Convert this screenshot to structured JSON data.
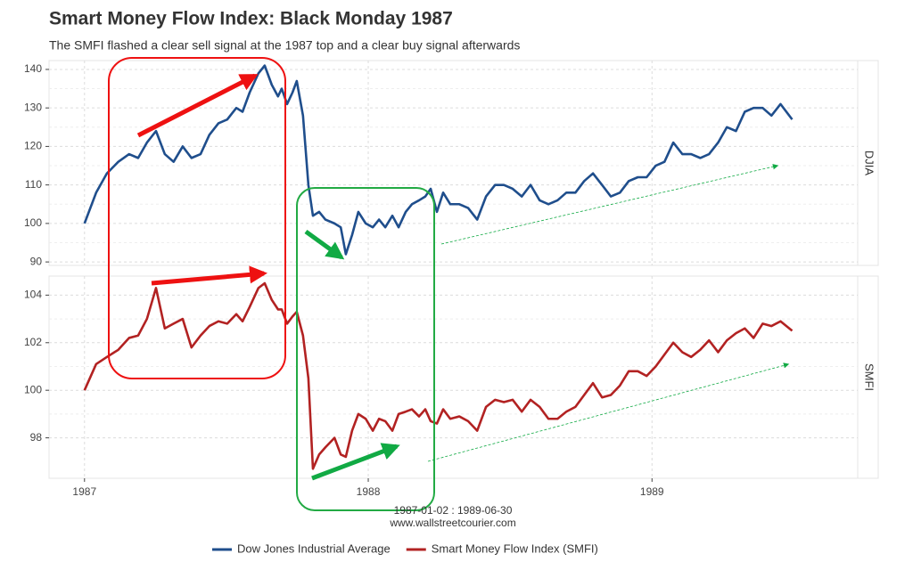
{
  "title": "Smart Money Flow Index: Black Monday 1987",
  "subtitle": "The SMFI flashed a clear sell signal at the 1987 top and a clear buy signal afterwards",
  "date_range": "1987-01-02 : 1989-06-30",
  "source": "www.wallstreetcourier.com",
  "chart_data": [
    {
      "type": "line",
      "panel_label": "DJIA",
      "x": [
        1987.0,
        1987.041,
        1987.079,
        1987.119,
        1987.157,
        1987.189,
        1987.22,
        1987.252,
        1987.283,
        1987.314,
        1987.346,
        1987.377,
        1987.409,
        1987.44,
        1987.472,
        1987.503,
        1987.535,
        1987.557,
        1987.582,
        1987.613,
        1987.635,
        1987.66,
        1987.682,
        1987.695,
        1987.714,
        1987.733,
        1987.748,
        1987.77,
        1987.789,
        1987.805,
        1987.827,
        1987.849,
        1987.881,
        1987.903,
        1987.921,
        1987.943,
        1987.965,
        1987.991,
        1988.016,
        1988.038,
        1988.06,
        1988.085,
        1988.107,
        1988.132,
        1988.154,
        1988.179,
        1988.201,
        1988.22,
        1988.242,
        1988.264,
        1988.289,
        1988.321,
        1988.352,
        1988.384,
        1988.415,
        1988.447,
        1988.478,
        1988.509,
        1988.541,
        1988.572,
        1988.604,
        1988.635,
        1988.667,
        1988.698,
        1988.73,
        1988.761,
        1988.792,
        1988.824,
        1988.855,
        1988.887,
        1988.918,
        1988.95,
        1988.981,
        1989.013,
        1989.044,
        1989.075,
        1989.107,
        1989.138,
        1989.17,
        1989.201,
        1989.233,
        1989.264,
        1989.296,
        1989.327,
        1989.358,
        1989.39,
        1989.421,
        1989.453,
        1989.494
      ],
      "series": [
        {
          "name": "Dow Jones Industrial Average",
          "color": "#1f4e8c",
          "values": [
            100,
            108,
            113,
            116,
            118,
            117,
            121,
            124,
            118,
            116,
            120,
            117,
            118,
            123,
            126,
            127,
            130,
            129,
            134,
            139,
            141,
            136,
            133,
            135,
            131,
            134,
            137,
            128,
            110,
            102,
            103,
            101,
            100,
            99,
            92,
            97,
            103,
            100,
            99,
            101,
            99,
            102,
            99,
            103,
            105,
            106,
            107,
            109,
            103,
            108,
            105,
            105,
            104,
            101,
            107,
            110,
            110,
            109,
            107,
            110,
            106,
            105,
            106,
            108,
            108,
            111,
            113,
            110,
            107,
            108,
            111,
            112,
            112,
            115,
            116,
            121,
            118,
            118,
            117,
            118,
            121,
            125,
            124,
            129,
            130,
            130,
            128,
            131,
            127
          ]
        }
      ],
      "xlim": [
        1986.875,
        1989.725
      ],
      "ylim": [
        89.1,
        142.3
      ],
      "yticks": [
        90,
        100,
        110,
        120,
        130,
        140
      ],
      "grid": true
    },
    {
      "type": "line",
      "panel_label": "SMFI",
      "x": [
        1987.0,
        1987.041,
        1987.079,
        1987.119,
        1987.157,
        1987.189,
        1987.22,
        1987.252,
        1987.283,
        1987.314,
        1987.346,
        1987.377,
        1987.409,
        1987.44,
        1987.472,
        1987.503,
        1987.535,
        1987.557,
        1987.582,
        1987.613,
        1987.635,
        1987.66,
        1987.682,
        1987.695,
        1987.714,
        1987.733,
        1987.748,
        1987.77,
        1987.789,
        1987.805,
        1987.827,
        1987.849,
        1987.881,
        1987.903,
        1987.921,
        1987.943,
        1987.965,
        1987.991,
        1988.016,
        1988.038,
        1988.06,
        1988.085,
        1988.107,
        1988.132,
        1988.154,
        1988.179,
        1988.201,
        1988.22,
        1988.242,
        1988.264,
        1988.289,
        1988.321,
        1988.352,
        1988.384,
        1988.415,
        1988.447,
        1988.478,
        1988.509,
        1988.541,
        1988.572,
        1988.604,
        1988.635,
        1988.667,
        1988.698,
        1988.73,
        1988.761,
        1988.792,
        1988.824,
        1988.855,
        1988.887,
        1988.918,
        1988.95,
        1988.981,
        1989.013,
        1989.044,
        1989.075,
        1989.107,
        1989.138,
        1989.17,
        1989.201,
        1989.233,
        1989.264,
        1989.296,
        1989.327,
        1989.358,
        1989.39,
        1989.421,
        1989.453,
        1989.494
      ],
      "series": [
        {
          "name": "Smart Money Flow Index (SMFI)",
          "color": "#b22222",
          "values": [
            100,
            101.1,
            101.4,
            101.7,
            102.2,
            102.3,
            103,
            104.3,
            102.6,
            102.8,
            103,
            101.8,
            102.3,
            102.7,
            102.9,
            102.8,
            103.2,
            102.9,
            103.5,
            104.3,
            104.5,
            103.8,
            103.4,
            103.4,
            102.8,
            103.1,
            103.3,
            102.3,
            100.5,
            96.7,
            97.3,
            97.6,
            98,
            97.3,
            97.2,
            98.3,
            99,
            98.8,
            98.3,
            98.8,
            98.7,
            98.3,
            99,
            99.1,
            99.2,
            98.9,
            99.2,
            98.7,
            98.6,
            99.2,
            98.8,
            98.9,
            98.7,
            98.3,
            99.3,
            99.6,
            99.5,
            99.6,
            99.1,
            99.6,
            99.3,
            98.8,
            98.8,
            99.1,
            99.3,
            99.8,
            100.3,
            99.7,
            99.8,
            100.2,
            100.8,
            100.8,
            100.6,
            101,
            101.5,
            102,
            101.6,
            101.4,
            101.7,
            102.1,
            101.6,
            102.1,
            102.4,
            102.6,
            102.2,
            102.8,
            102.7,
            102.9,
            102.5
          ]
        }
      ],
      "xlim": [
        1986.875,
        1989.725
      ],
      "xticks": [
        1987,
        1988,
        1989
      ],
      "ylim": [
        96.3,
        104.8
      ],
      "yticks": [
        98,
        100,
        102,
        104
      ],
      "grid": true
    }
  ]
}
